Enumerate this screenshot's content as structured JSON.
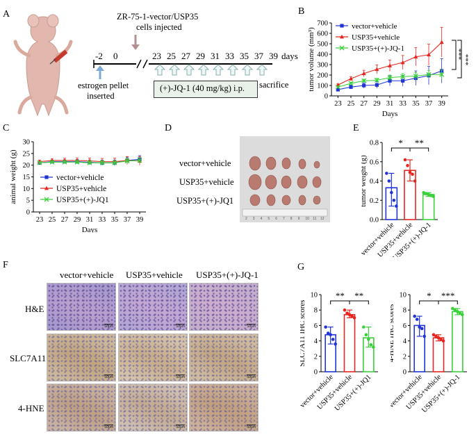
{
  "panels": {
    "A": "A",
    "B": "B",
    "C": "C",
    "D": "D",
    "E": "E",
    "F": "F",
    "G": "G"
  },
  "colors": {
    "vector": "#1f33d6",
    "usp35": "#e8241e",
    "jq1": "#39d13a",
    "box_fill": "#e8f2e8"
  },
  "panelA": {
    "cells_line1": "ZR-75-1-vector/USP35",
    "cells_line2": "cells injected",
    "ticks": [
      "-2",
      "0",
      "23",
      "25",
      "27",
      "29",
      "31",
      "33",
      "35",
      "37",
      "39"
    ],
    "days": "days",
    "pellet_line1": "estrogen pellet",
    "pellet_line2": "inserted",
    "treatment": "(+)-JQ-1 (40 mg/kg) i.p.",
    "sacrifice": "sacrifice"
  },
  "chart_data": [
    {
      "panel": "B",
      "type": "line",
      "x": [
        23,
        25,
        27,
        29,
        31,
        33,
        35,
        37,
        39
      ],
      "xlabel": "Days",
      "ylabel": "tumor volume (mm3)",
      "ylim": [
        0,
        700
      ],
      "yticks": [
        "0",
        "100",
        "200",
        "300",
        "400",
        "500",
        "600",
        "700"
      ],
      "series": [
        {
          "name": "vector+vehicle",
          "values": [
            60,
            85,
            100,
            105,
            145,
            145,
            170,
            195,
            240
          ]
        },
        {
          "name": "USP35+vehicle",
          "values": [
            105,
            165,
            215,
            255,
            290,
            320,
            375,
            395,
            515
          ]
        },
        {
          "name": "USP35+(+)-JQ-1",
          "values": [
            85,
            120,
            145,
            150,
            175,
            185,
            190,
            205,
            205
          ]
        }
      ],
      "significance": [
        "***",
        "***"
      ]
    },
    {
      "panel": "C",
      "type": "line",
      "x": [
        23,
        25,
        27,
        29,
        31,
        33,
        35,
        37,
        39
      ],
      "xlabel": "Days",
      "ylabel": "animal weight (g)",
      "ylim": [
        0,
        30
      ],
      "yticks": [
        "0",
        "5",
        "10",
        "15",
        "20",
        "25",
        "30"
      ],
      "series": [
        {
          "name": "vector+vehicle",
          "values": [
            21,
            21.5,
            21.5,
            21.5,
            21.2,
            21,
            21,
            22,
            22.5
          ]
        },
        {
          "name": "USP35+vehicle",
          "values": [
            21.5,
            22,
            22,
            22,
            21.8,
            21.5,
            21.5,
            22,
            21.8
          ]
        },
        {
          "name": "USP35+(+)-JQ1",
          "values": [
            21,
            21.3,
            21.3,
            21.3,
            21,
            21,
            21,
            21.8,
            22
          ]
        }
      ]
    },
    {
      "panel": "E",
      "type": "bar",
      "categories": [
        "vector+vehicle",
        "USP35+vehicle",
        "USP35+(+)-JQ-1"
      ],
      "values": [
        0.33,
        0.51,
        0.26
      ],
      "points": [
        [
          0.48,
          0.4,
          0.28,
          0.2,
          0.14
        ],
        [
          0.62,
          0.56,
          0.49,
          0.47,
          0.4
        ],
        [
          0.28,
          0.27,
          0.26,
          0.25,
          0.24
        ]
      ],
      "ylabel": "tumor weight (g)",
      "ylim": [
        0,
        0.8
      ],
      "yticks": [
        "0.0",
        "0.2",
        "0.4",
        "0.6",
        "0.8"
      ],
      "significance": [
        "*",
        "**"
      ]
    },
    {
      "panel": "G",
      "type": "bar",
      "categories": [
        "vector+vehicle",
        "USP35+vehicle",
        "USP35+(+)-JQ1"
      ],
      "values": [
        4.8,
        7.4,
        4.4
      ],
      "points": [
        [
          5.8,
          5.0,
          4.8,
          4.2,
          3.6
        ],
        [
          8.0,
          7.6,
          7.4,
          7.2,
          7.0
        ],
        [
          5.8,
          4.8,
          4.2,
          3.5,
          3.2
        ]
      ],
      "ylabel": "SLC7A11 IHC scores",
      "ylim": [
        0,
        10
      ],
      "yticks": [
        "0",
        "2",
        "4",
        "6",
        "8",
        "10"
      ],
      "significance": [
        "**",
        "**"
      ]
    },
    {
      "panel": "G2",
      "type": "bar",
      "categories": [
        "vector+vehicle",
        "USP35+vehicle",
        "USP35+(+)-JQ-1"
      ],
      "values": [
        6.0,
        4.4,
        7.8
      ],
      "points": [
        [
          7.2,
          6.8,
          5.8,
          5.6,
          4.6
        ],
        [
          4.8,
          4.6,
          4.4,
          4.2,
          4.0
        ],
        [
          8.2,
          8.0,
          7.8,
          7.6,
          7.4
        ]
      ],
      "ylabel": "4-HNE IHC scores",
      "ylim": [
        0,
        10
      ],
      "yticks": [
        "0",
        "2",
        "4",
        "6",
        "8",
        "10"
      ],
      "significance": [
        "*",
        "***"
      ]
    }
  ],
  "panelD": {
    "rows": [
      "vector+vehicle",
      "USP35+vehicle",
      "USP35+(+)-JQ1"
    ],
    "ruler": [
      "2",
      "3",
      "4",
      "5",
      "6",
      "7",
      "8",
      "9",
      "10",
      "11",
      "12"
    ]
  },
  "panelF": {
    "columns": [
      "vector+vehicle",
      "USP35+vehicle",
      "USP35+(+)-JQ-1"
    ],
    "rows": [
      "H&E",
      "SLC7A11",
      "4-HNE"
    ],
    "scale_bar": "50μm"
  }
}
